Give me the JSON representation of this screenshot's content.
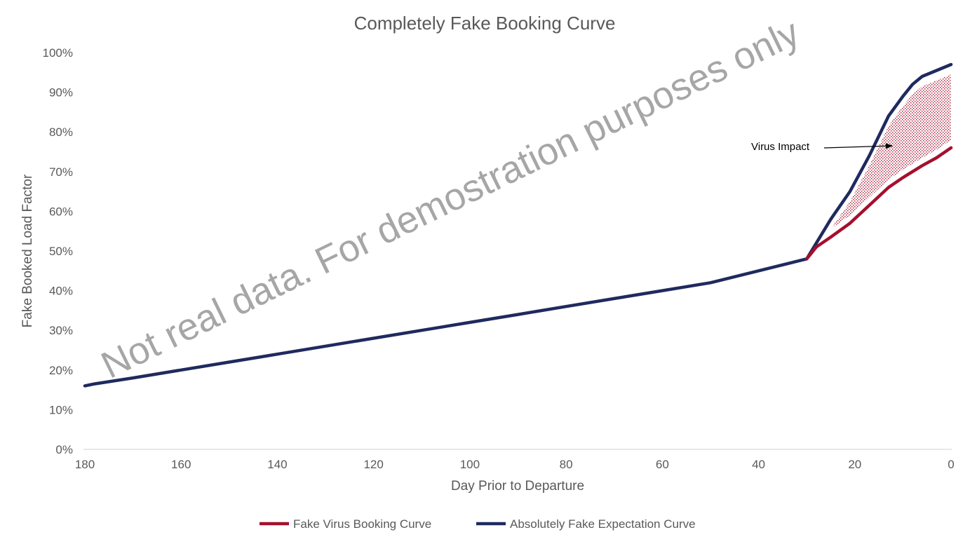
{
  "chart_data": {
    "type": "line",
    "title": "Completely Fake Booking Curve",
    "xlabel": "Day Prior to Departure",
    "ylabel": "Fake Booked Load Factor",
    "xlim": [
      180,
      0
    ],
    "ylim": [
      0,
      1
    ],
    "x_ticks": [
      "180",
      "160",
      "140",
      "120",
      "100",
      "80",
      "60",
      "40",
      "20",
      "0"
    ],
    "y_ticks": [
      "0%",
      "10%",
      "20%",
      "30%",
      "40%",
      "50%",
      "60%",
      "70%",
      "80%",
      "90%",
      "100%"
    ],
    "grid": false,
    "legend_position": "bottom",
    "series": [
      {
        "name": "Fake Virus Booking Curve",
        "color": "#a50f2d",
        "x": [
          30,
          28,
          25,
          21,
          17,
          13,
          10,
          6,
          3,
          0
        ],
        "y": [
          0.48,
          0.51,
          0.535,
          0.57,
          0.615,
          0.66,
          0.685,
          0.715,
          0.735,
          0.76
        ]
      },
      {
        "name": "Absolutely Fake Expectation Curve",
        "color": "#1f2a5e",
        "x": [
          180,
          178,
          170,
          160,
          150,
          140,
          130,
          120,
          110,
          100,
          90,
          80,
          70,
          60,
          50,
          40,
          35,
          30,
          28,
          25,
          21,
          17,
          13,
          10,
          8,
          6,
          3,
          0
        ],
        "y": [
          0.16,
          0.165,
          0.18,
          0.2,
          0.22,
          0.24,
          0.26,
          0.28,
          0.3,
          0.32,
          0.34,
          0.36,
          0.38,
          0.4,
          0.42,
          0.45,
          0.465,
          0.48,
          0.52,
          0.58,
          0.65,
          0.74,
          0.84,
          0.89,
          0.92,
          0.94,
          0.955,
          0.97
        ]
      }
    ],
    "annotations": [
      {
        "text": "Virus Impact",
        "x": 12,
        "y": 0.76
      }
    ],
    "watermark": "Not real data. For demostration purposes only"
  }
}
